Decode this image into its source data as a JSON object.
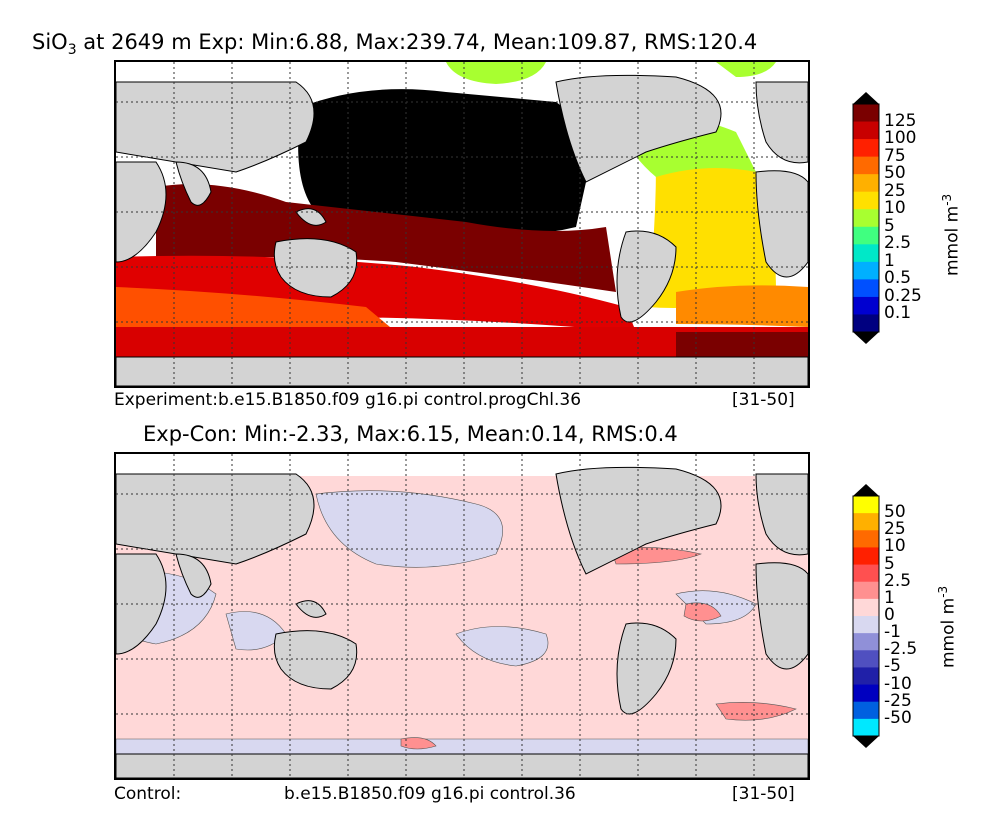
{
  "chart_data": [
    {
      "type": "heatmap",
      "title": "SiO$_3$ at 2649 m Exp: Min:6.88, Max:239.74, Mean:109.87, RMS:120.4",
      "title_parts": {
        "var": "SiO",
        "sub": "3",
        "rest": " at 2649 m Exp: Min:6.88, Max:239.74, Mean:109.87, RMS:120.4"
      },
      "stats": {
        "min": 6.88,
        "max": 239.74,
        "mean": 109.87,
        "rms": 120.4
      },
      "caption_left": "Experiment:b.e15.B1850.f09 g16.pi control.progChl.36",
      "caption_right": "[31-50]",
      "colorbar": {
        "unit": "mmol m",
        "unit_exp": "-3",
        "levels": [
          "125",
          "100",
          "75",
          "50",
          "25",
          "10",
          "5",
          "2.5",
          "1",
          "0.5",
          "0.25",
          "0.1"
        ],
        "colors": [
          "#7a0000",
          "#c80000",
          "#ff2000",
          "#ff6a00",
          "#ffb000",
          "#ffe000",
          "#a8ff30",
          "#40ff80",
          "#00e8c8",
          "#00b0ff",
          "#0050ff",
          "#0000d0",
          "#000080"
        ],
        "extend": "both"
      },
      "grid": true
    },
    {
      "type": "heatmap",
      "title": "Exp-Con: Min:-2.33, Max:6.15, Mean:0.14, RMS:0.4",
      "stats": {
        "min": -2.33,
        "max": 6.15,
        "mean": 0.14,
        "rms": 0.4
      },
      "caption_left": "Control:",
      "caption_center": "b.e15.B1850.f09 g16.pi control.36",
      "caption_right": "[31-50]",
      "colorbar": {
        "unit": "mmol m",
        "unit_exp": "-3",
        "levels": [
          "50",
          "25",
          "10",
          "5",
          "2.5",
          "1",
          "0",
          "-1",
          "-2.5",
          "-5",
          "-10",
          "-25",
          "-50"
        ],
        "colors": [
          "#ffff00",
          "#ffb000",
          "#ff6a00",
          "#ff2000",
          "#ff5050",
          "#ff9090",
          "#ffd8d8",
          "#d8d8f0",
          "#9090d8",
          "#5050c0",
          "#2020a8",
          "#0000c0",
          "#0060e0",
          "#00e8ff"
        ],
        "extend": "both"
      },
      "grid": true
    }
  ]
}
